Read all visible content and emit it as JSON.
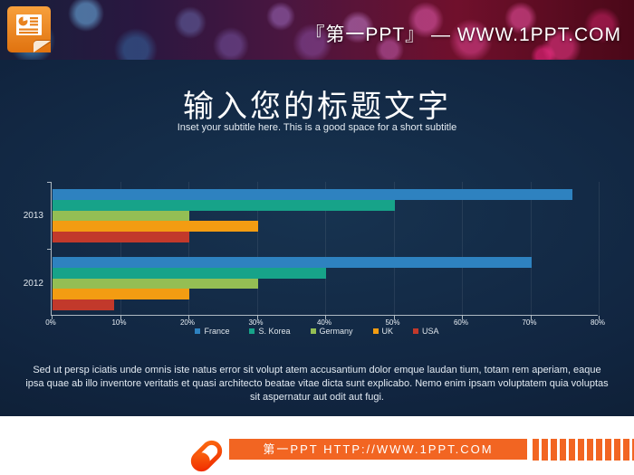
{
  "header": {
    "site_title": "『第一PPT』 — WWW.1PPT.COM",
    "icon": "powerpoint-file-icon"
  },
  "slide": {
    "title": "输入您的标题文字",
    "subtitle": "Inset your subtitle here. This is a good space for a short subtitle",
    "body_text": "Sed ut persp iciatis unde omnis iste natus error sit volupt atem accusantium dolor emque laudan tium, totam rem aperiam, eaque ipsa quae ab illo inventore veritatis et quasi architecto beatae vitae dicta sunt explicabo. Nemo enim ipsam voluptatem quia voluptas sit aspernatur aut odit aut fugi.",
    "background_color": "#112540"
  },
  "chart_data": {
    "type": "bar",
    "orientation": "horizontal",
    "title": "",
    "xlabel": "",
    "ylabel": "",
    "categories": [
      "2013",
      "2012"
    ],
    "series": [
      {
        "name": "France",
        "color": "#2E82C0",
        "values": [
          76,
          70
        ]
      },
      {
        "name": "S. Korea",
        "color": "#17A389",
        "values": [
          50,
          40
        ]
      },
      {
        "name": "Germany",
        "color": "#94BE54",
        "values": [
          20,
          30
        ]
      },
      {
        "name": "UK",
        "color": "#F39C12",
        "values": [
          30,
          20
        ]
      },
      {
        "name": "USA",
        "color": "#C2392B",
        "values": [
          20,
          9
        ]
      }
    ],
    "x_ticks": [
      "0%",
      "10%",
      "20%",
      "30%",
      "40%",
      "50%",
      "60%",
      "70%",
      "80%"
    ],
    "xlim": [
      0,
      80
    ],
    "grid": true,
    "legend_position": "bottom",
    "axis_color": "#aeb9c2"
  },
  "footer": {
    "site_link": "第一PPT HTTP://WWW.1PPT.COM",
    "accent_color": "#F26522",
    "icon": "pill-link-icon"
  }
}
